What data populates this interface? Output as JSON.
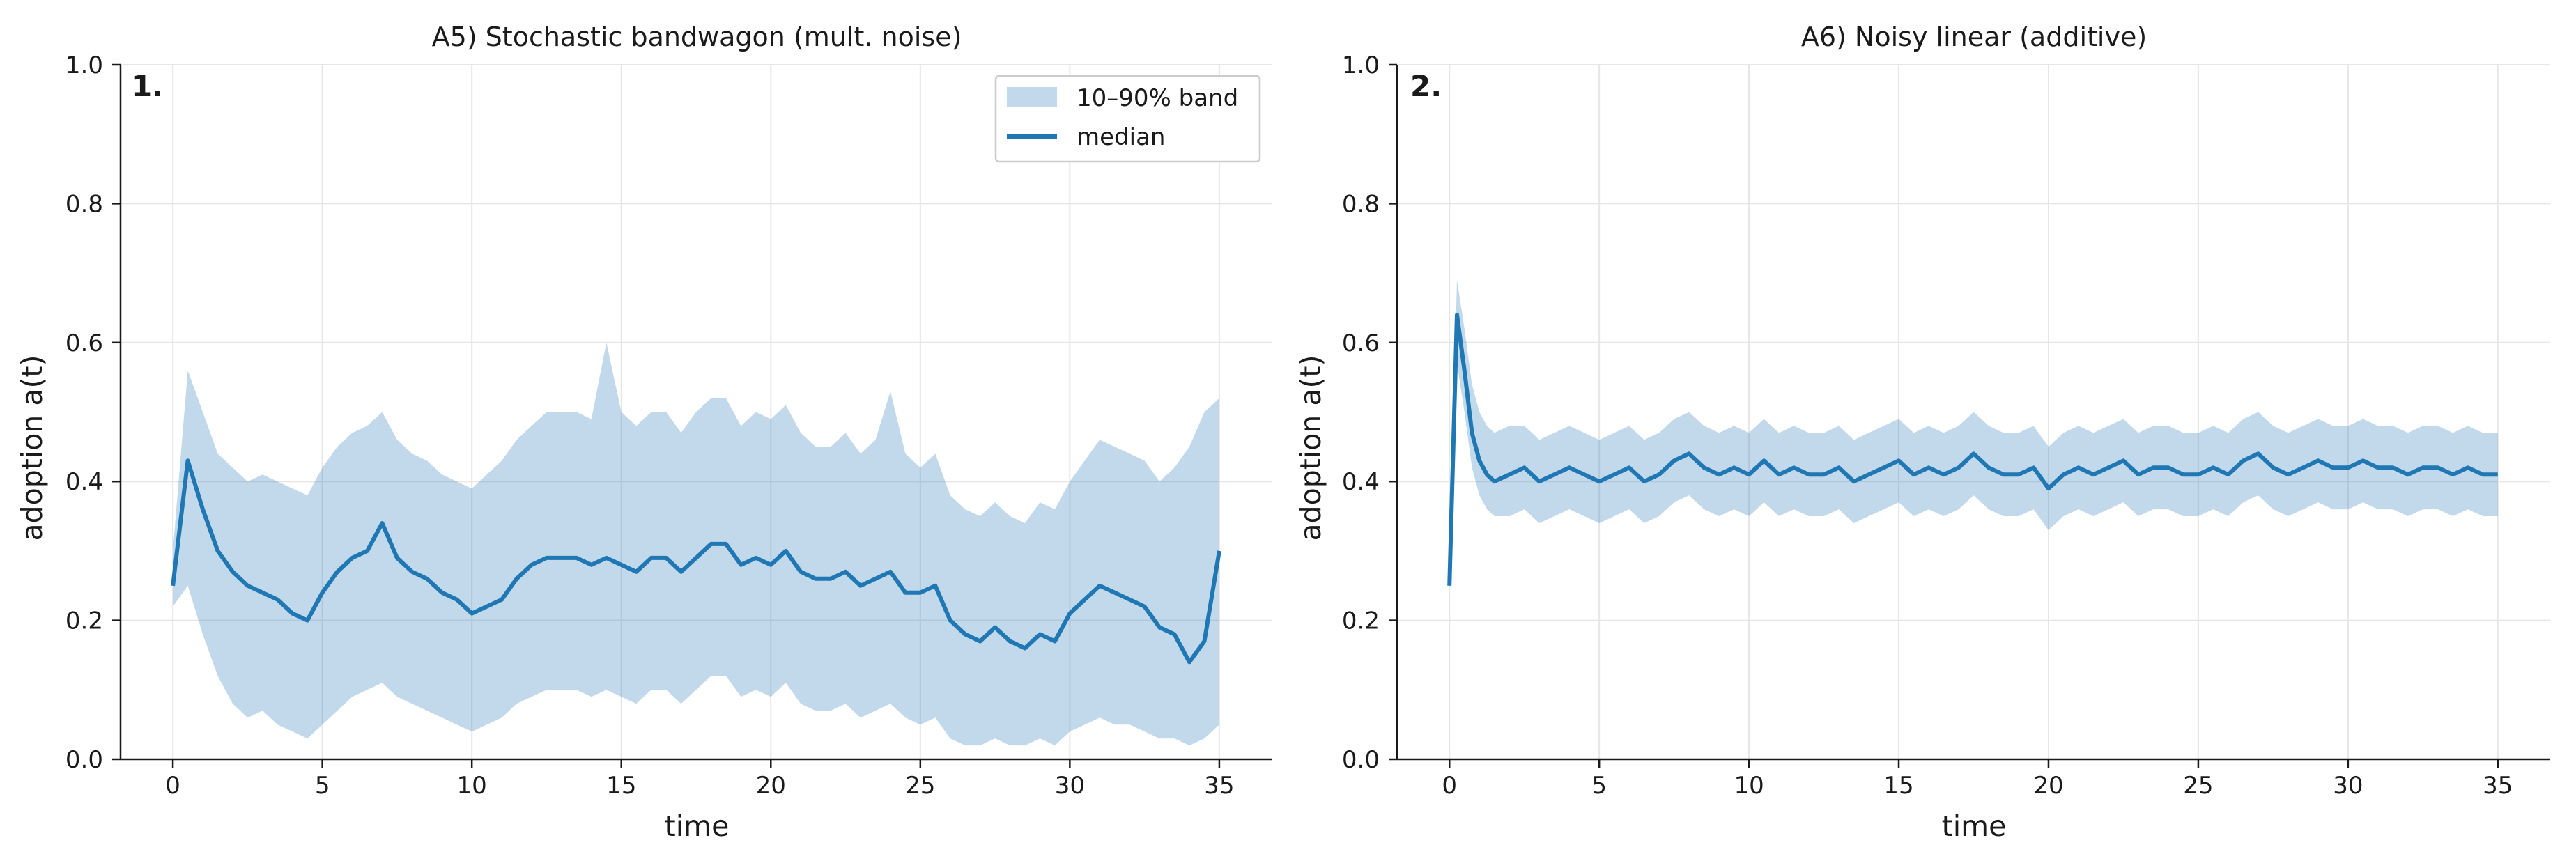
{
  "colors": {
    "median": "#1f77b4",
    "band": "#1f77b4",
    "grid": "#e6e6e6",
    "axis": "#1a1a1a"
  },
  "panels": [
    {
      "panel_label": "1.",
      "title": "A5) Stochastic bandwagon (mult. noise)",
      "xlabel": "time",
      "ylabel": "adoption a(t)",
      "legend": {
        "band_label": "10–90% band",
        "median_label": "median",
        "placement": "upper-right"
      },
      "xticks": [
        "0",
        "5",
        "10",
        "15",
        "20",
        "25",
        "30",
        "35"
      ],
      "yticks": [
        "0.0",
        "0.2",
        "0.4",
        "0.6",
        "0.8",
        "1.0"
      ]
    },
    {
      "panel_label": "2.",
      "title": "A6) Noisy linear (additive)",
      "xlabel": "time",
      "ylabel": "adoption a(t)",
      "xticks": [
        "0",
        "5",
        "10",
        "15",
        "20",
        "25",
        "30",
        "35"
      ],
      "yticks": [
        "0.0",
        "0.2",
        "0.4",
        "0.6",
        "0.8",
        "1.0"
      ]
    }
  ],
  "chart_data": [
    {
      "type": "area",
      "title": "A5) Stochastic bandwagon (mult. noise)",
      "xlabel": "time",
      "ylabel": "adoption a(t)",
      "xlim": [
        -1.75,
        36.75
      ],
      "ylim": [
        0,
        1
      ],
      "grid": true,
      "legend_placement": "upper-right",
      "x": [
        0,
        0.5,
        1,
        1.5,
        2,
        2.5,
        3,
        3.5,
        4,
        4.5,
        5,
        5.5,
        6,
        6.5,
        7,
        7.5,
        8,
        8.5,
        9,
        9.5,
        10,
        10.5,
        11,
        11.5,
        12,
        12.5,
        13,
        13.5,
        14,
        14.5,
        15,
        15.5,
        16,
        16.5,
        17,
        17.5,
        18,
        18.5,
        19,
        19.5,
        20,
        20.5,
        21,
        21.5,
        22,
        22.5,
        23,
        23.5,
        24,
        24.5,
        25,
        25.5,
        26,
        26.5,
        27,
        27.5,
        28,
        28.5,
        29,
        29.5,
        30,
        30.5,
        31,
        31.5,
        32,
        32.5,
        33,
        33.5,
        34,
        34.5,
        35
      ],
      "series": [
        {
          "name": "median",
          "values": [
            0.25,
            0.43,
            0.36,
            0.3,
            0.27,
            0.25,
            0.24,
            0.23,
            0.21,
            0.2,
            0.24,
            0.27,
            0.29,
            0.3,
            0.34,
            0.29,
            0.27,
            0.26,
            0.24,
            0.23,
            0.21,
            0.22,
            0.23,
            0.26,
            0.28,
            0.29,
            0.29,
            0.29,
            0.28,
            0.29,
            0.28,
            0.27,
            0.29,
            0.29,
            0.27,
            0.29,
            0.31,
            0.31,
            0.28,
            0.29,
            0.28,
            0.3,
            0.27,
            0.26,
            0.26,
            0.27,
            0.25,
            0.26,
            0.27,
            0.24,
            0.24,
            0.25,
            0.2,
            0.18,
            0.17,
            0.19,
            0.17,
            0.16,
            0.18,
            0.17,
            0.21,
            0.23,
            0.25,
            0.24,
            0.23,
            0.22,
            0.19,
            0.18,
            0.14,
            0.17,
            0.3
          ]
        },
        {
          "name": "10–90% band",
          "lower": [
            0.22,
            0.25,
            0.18,
            0.12,
            0.08,
            0.06,
            0.07,
            0.05,
            0.04,
            0.03,
            0.05,
            0.07,
            0.09,
            0.1,
            0.11,
            0.09,
            0.08,
            0.07,
            0.06,
            0.05,
            0.04,
            0.05,
            0.06,
            0.08,
            0.09,
            0.1,
            0.1,
            0.1,
            0.09,
            0.1,
            0.09,
            0.08,
            0.1,
            0.1,
            0.08,
            0.1,
            0.12,
            0.12,
            0.09,
            0.1,
            0.09,
            0.11,
            0.08,
            0.07,
            0.07,
            0.08,
            0.06,
            0.07,
            0.08,
            0.06,
            0.05,
            0.06,
            0.03,
            0.02,
            0.02,
            0.03,
            0.02,
            0.02,
            0.03,
            0.02,
            0.04,
            0.05,
            0.06,
            0.05,
            0.05,
            0.04,
            0.03,
            0.03,
            0.02,
            0.03,
            0.05
          ],
          "upper": [
            0.3,
            0.56,
            0.5,
            0.44,
            0.42,
            0.4,
            0.41,
            0.4,
            0.39,
            0.38,
            0.42,
            0.45,
            0.47,
            0.48,
            0.5,
            0.46,
            0.44,
            0.43,
            0.41,
            0.4,
            0.39,
            0.41,
            0.43,
            0.46,
            0.48,
            0.5,
            0.5,
            0.5,
            0.49,
            0.6,
            0.5,
            0.48,
            0.5,
            0.5,
            0.47,
            0.5,
            0.52,
            0.52,
            0.48,
            0.5,
            0.49,
            0.51,
            0.47,
            0.45,
            0.45,
            0.47,
            0.44,
            0.46,
            0.53,
            0.44,
            0.42,
            0.44,
            0.38,
            0.36,
            0.35,
            0.37,
            0.35,
            0.34,
            0.37,
            0.36,
            0.4,
            0.43,
            0.46,
            0.45,
            0.44,
            0.43,
            0.4,
            0.42,
            0.45,
            0.5,
            0.52
          ]
        }
      ]
    },
    {
      "type": "area",
      "title": "A6) Noisy linear (additive)",
      "xlabel": "time",
      "ylabel": "adoption a(t)",
      "xlim": [
        -1.75,
        36.75
      ],
      "ylim": [
        0,
        1
      ],
      "grid": true,
      "x": [
        0,
        0.25,
        0.5,
        0.75,
        1,
        1.25,
        1.5,
        2,
        2.5,
        3,
        3.5,
        4,
        4.5,
        5,
        5.5,
        6,
        6.5,
        7,
        7.5,
        8,
        8.5,
        9,
        9.5,
        10,
        10.5,
        11,
        11.5,
        12,
        12.5,
        13,
        13.5,
        14,
        14.5,
        15,
        15.5,
        16,
        16.5,
        17,
        17.5,
        18,
        18.5,
        19,
        19.5,
        20,
        20.5,
        21,
        21.5,
        22,
        22.5,
        23,
        23.5,
        24,
        24.5,
        25,
        25.5,
        26,
        26.5,
        27,
        27.5,
        28,
        28.5,
        29,
        29.5,
        30,
        30.5,
        31,
        31.5,
        32,
        32.5,
        33,
        33.5,
        34,
        34.5,
        35
      ],
      "series": [
        {
          "name": "median",
          "values": [
            0.25,
            0.64,
            0.56,
            0.47,
            0.43,
            0.41,
            0.4,
            0.41,
            0.42,
            0.4,
            0.41,
            0.42,
            0.41,
            0.4,
            0.41,
            0.42,
            0.4,
            0.41,
            0.43,
            0.44,
            0.42,
            0.41,
            0.42,
            0.41,
            0.43,
            0.41,
            0.42,
            0.41,
            0.41,
            0.42,
            0.4,
            0.41,
            0.42,
            0.43,
            0.41,
            0.42,
            0.41,
            0.42,
            0.44,
            0.42,
            0.41,
            0.41,
            0.42,
            0.39,
            0.41,
            0.42,
            0.41,
            0.42,
            0.43,
            0.41,
            0.42,
            0.42,
            0.41,
            0.41,
            0.42,
            0.41,
            0.43,
            0.44,
            0.42,
            0.41,
            0.42,
            0.43,
            0.42,
            0.42,
            0.43,
            0.42,
            0.42,
            0.41,
            0.42,
            0.42,
            0.41,
            0.42,
            0.41,
            0.41
          ]
        },
        {
          "name": "10–90% band",
          "lower": [
            0.25,
            0.57,
            0.5,
            0.42,
            0.38,
            0.36,
            0.35,
            0.35,
            0.36,
            0.34,
            0.35,
            0.36,
            0.35,
            0.34,
            0.35,
            0.36,
            0.34,
            0.35,
            0.37,
            0.38,
            0.36,
            0.35,
            0.36,
            0.35,
            0.37,
            0.35,
            0.36,
            0.35,
            0.35,
            0.36,
            0.34,
            0.35,
            0.36,
            0.37,
            0.35,
            0.36,
            0.35,
            0.36,
            0.38,
            0.36,
            0.35,
            0.35,
            0.36,
            0.33,
            0.35,
            0.36,
            0.35,
            0.36,
            0.37,
            0.35,
            0.36,
            0.36,
            0.35,
            0.35,
            0.36,
            0.35,
            0.37,
            0.38,
            0.36,
            0.35,
            0.36,
            0.37,
            0.36,
            0.36,
            0.37,
            0.36,
            0.36,
            0.35,
            0.36,
            0.36,
            0.35,
            0.36,
            0.35,
            0.35
          ],
          "upper": [
            0.26,
            0.69,
            0.62,
            0.54,
            0.5,
            0.48,
            0.47,
            0.48,
            0.48,
            0.46,
            0.47,
            0.48,
            0.47,
            0.46,
            0.47,
            0.48,
            0.46,
            0.47,
            0.49,
            0.5,
            0.48,
            0.47,
            0.48,
            0.47,
            0.49,
            0.47,
            0.48,
            0.47,
            0.47,
            0.48,
            0.46,
            0.47,
            0.48,
            0.49,
            0.47,
            0.48,
            0.47,
            0.48,
            0.5,
            0.48,
            0.47,
            0.47,
            0.48,
            0.45,
            0.47,
            0.48,
            0.47,
            0.48,
            0.49,
            0.47,
            0.48,
            0.48,
            0.47,
            0.47,
            0.48,
            0.47,
            0.49,
            0.5,
            0.48,
            0.47,
            0.48,
            0.49,
            0.48,
            0.48,
            0.49,
            0.48,
            0.48,
            0.47,
            0.48,
            0.48,
            0.47,
            0.48,
            0.47,
            0.47
          ]
        }
      ]
    }
  ]
}
